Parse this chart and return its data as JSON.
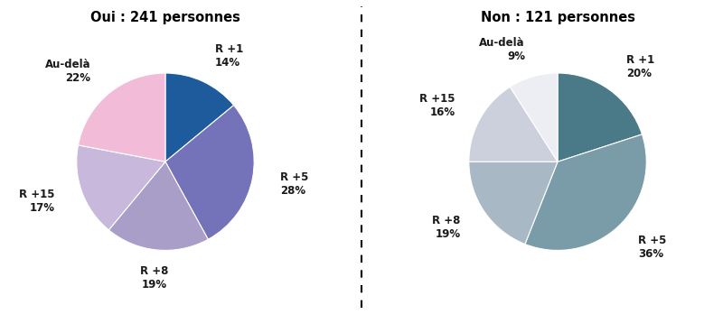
{
  "chart1": {
    "title": "Oui : 241 personnes",
    "labels": [
      "R +1",
      "R +5",
      "R +8",
      "R +15",
      "Au-delà"
    ],
    "values": [
      14,
      28,
      19,
      17,
      22
    ],
    "colors": [
      "#1e5b9c",
      "#7472b8",
      "#a89ec8",
      "#c8b8dc",
      "#f2bcd8"
    ],
    "startangle": 90
  },
  "chart2": {
    "title": "Non : 121 personnes",
    "labels": [
      "R +1",
      "R +5",
      "R +8",
      "R +15",
      "Au-delà"
    ],
    "values": [
      20,
      36,
      19,
      16,
      9
    ],
    "colors": [
      "#4a7a88",
      "#7a9ca8",
      "#a8b8c4",
      "#ccd0dc",
      "#eceef4"
    ],
    "startangle": 90
  },
  "bg_color": "#ffffff",
  "label_fontsize": 8.5,
  "title_fontsize": 10.5
}
